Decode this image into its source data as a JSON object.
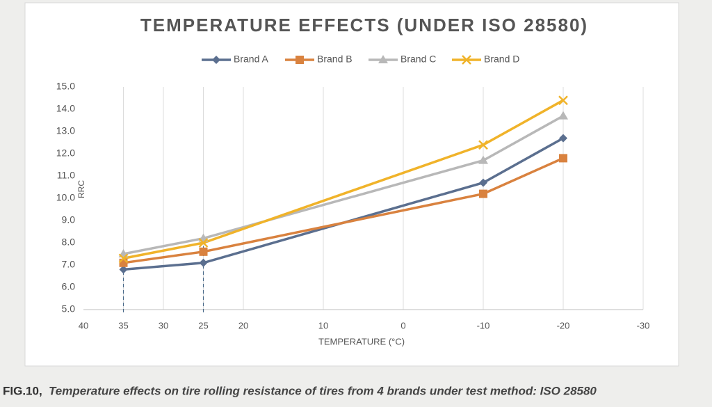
{
  "chart_data": {
    "type": "line",
    "title": "TEMPERATURE EFFECTS (UNDER ISO 28580)",
    "x_label": "TEMPERATURE (°C)",
    "y_label": "RRC",
    "x": [
      35,
      25,
      -10,
      -20
    ],
    "series": [
      {
        "name": "Brand A",
        "color": "#5b6f8f",
        "marker": "diamond",
        "values": [
          6.8,
          7.1,
          10.7,
          12.7
        ]
      },
      {
        "name": "Brand B",
        "color": "#d9823f",
        "marker": "square",
        "values": [
          7.1,
          7.6,
          10.2,
          11.8
        ]
      },
      {
        "name": "Brand C",
        "color": "#b8b8b8",
        "marker": "triangle",
        "values": [
          7.5,
          8.2,
          11.7,
          13.7
        ]
      },
      {
        "name": "Brand D",
        "color": "#f0b32a",
        "marker": "cross",
        "values": [
          7.3,
          8.0,
          12.4,
          14.4
        ]
      }
    ],
    "xlim": [
      40,
      -30
    ],
    "xticks": [
      40,
      35,
      30,
      25,
      20,
      10,
      0,
      -10,
      -20,
      -30
    ],
    "ylim": [
      5,
      15
    ],
    "yticks": [
      {
        "value": 5,
        "label": "5.0"
      },
      {
        "value": 6,
        "label": "6.0"
      },
      {
        "value": 7,
        "label": "7.0"
      },
      {
        "value": 8,
        "label": "8.0"
      },
      {
        "value": 9,
        "label": "9.0"
      },
      {
        "value": 10,
        "label": "10.0"
      },
      {
        "value": 11,
        "label": "11.0"
      },
      {
        "value": 12,
        "label": "12.0"
      },
      {
        "value": 13,
        "label": "13.0"
      },
      {
        "value": 14,
        "label": "14.0"
      },
      {
        "value": 15,
        "label": "15.0"
      }
    ],
    "grid": true,
    "legend": "top",
    "caption_label": "FIG.10,",
    "caption_text": "Temperature effects on tire rolling resistance of tires from 4 brands under test method: ISO 28580"
  }
}
